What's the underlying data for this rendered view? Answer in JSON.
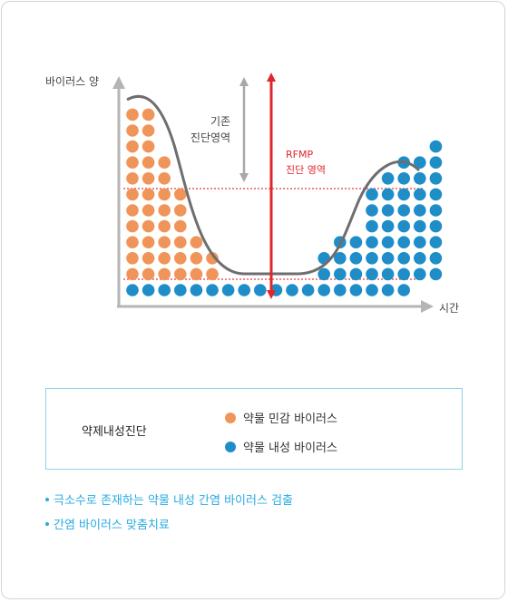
{
  "axes": {
    "y_label": "바이러스 양",
    "x_label": "시간"
  },
  "labels": {
    "existing_line1": "기존",
    "existing_line2": "진단영역",
    "rfmp_line1": "RFMP",
    "rfmp_line2": "진단 영역"
  },
  "legend": {
    "title": "약제내성진단",
    "items": [
      {
        "label": "약물 민감 바이러스",
        "color": "#f0955a"
      },
      {
        "label": "약물 내성 바이러스",
        "color": "#1f8dc8"
      }
    ]
  },
  "bullets": {
    "color": "#29abe2",
    "items": [
      "극소수로 존재하는 약물 내성 간염 바이러스 검출",
      "간염 바이러스 맞춤치료"
    ]
  },
  "colors": {
    "curve": "#6e6e6e",
    "axis": "#b5b5b5",
    "threshold": "#e03c3c",
    "rfmp_arrow": "#e0262b",
    "existing_arrow": "#a8a8a8",
    "rfmp_text": "#e0262b"
  },
  "chart_data": {
    "type": "diagram",
    "sensitive_dot_columns": [
      11,
      11,
      8,
      6,
      3,
      2
    ],
    "resistant_dot_columns": [
      2,
      3,
      3,
      6,
      7,
      8,
      8,
      9
    ]
  }
}
